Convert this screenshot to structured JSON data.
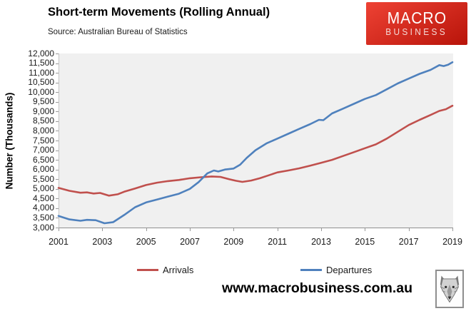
{
  "header": {
    "title": "Short-term Movements (Rolling Annual)",
    "source": "Source: Australian Bureau of Statistics"
  },
  "logo": {
    "line1": "MACRO",
    "line2": "BUSINESS",
    "bg_top": "#ee4234",
    "bg_bottom": "#b8140a",
    "text_color": "#ffffff"
  },
  "footer": {
    "url": "www.macrobusiness.com.au",
    "wolf_icon": "wolf-logo"
  },
  "chart_data": {
    "type": "line",
    "title": "Short-term Movements (Rolling Annual)",
    "subtitle": "Source: Australian Bureau of Statistics",
    "xlabel": "",
    "ylabel": "Number (Thousands)",
    "xlim": [
      2001,
      2019
    ],
    "ylim": [
      3000,
      12000
    ],
    "grid": false,
    "legend_position": "bottom",
    "plot_bg": "#f0f0f0",
    "xtick_values": [
      2001,
      2003,
      2005,
      2007,
      2009,
      2011,
      2013,
      2015,
      2017,
      2019
    ],
    "xtick_labels": [
      "2001",
      "2003",
      "2005",
      "2007",
      "2009",
      "2011",
      "2013",
      "2015",
      "2017",
      "2019"
    ],
    "ytick_values": [
      12000,
      11500,
      11000,
      10500,
      10000,
      9500,
      9000,
      8500,
      8000,
      7500,
      7000,
      6500,
      6000,
      5500,
      5000,
      4500,
      4000,
      3500,
      3000
    ],
    "ytick_labels": [
      "12,000",
      "11,500",
      "11,000",
      "10,500",
      "10,000",
      "9,500",
      "9,000",
      "8,500",
      "8,000",
      "7,500",
      "7,000",
      "6,500",
      "6,000",
      "5,500",
      "5,000",
      "4,500",
      "4,000",
      "3,500",
      "3,000"
    ],
    "series": [
      {
        "name": "Arrivals",
        "color": "#c0504d",
        "points": [
          [
            2001,
            5050
          ],
          [
            2001.5,
            4900
          ],
          [
            2002,
            4800
          ],
          [
            2002.3,
            4820
          ],
          [
            2002.6,
            4760
          ],
          [
            2002.9,
            4790
          ],
          [
            2003.3,
            4650
          ],
          [
            2003.7,
            4720
          ],
          [
            2004,
            4850
          ],
          [
            2004.5,
            5020
          ],
          [
            2005,
            5200
          ],
          [
            2005.5,
            5320
          ],
          [
            2006,
            5400
          ],
          [
            2006.5,
            5460
          ],
          [
            2007,
            5550
          ],
          [
            2007.5,
            5600
          ],
          [
            2008,
            5640
          ],
          [
            2008.4,
            5620
          ],
          [
            2008.8,
            5500
          ],
          [
            2009.1,
            5420
          ],
          [
            2009.4,
            5360
          ],
          [
            2009.8,
            5430
          ],
          [
            2010.2,
            5550
          ],
          [
            2010.6,
            5700
          ],
          [
            2011,
            5850
          ],
          [
            2011.5,
            5950
          ],
          [
            2012,
            6060
          ],
          [
            2012.5,
            6200
          ],
          [
            2013,
            6350
          ],
          [
            2013.5,
            6500
          ],
          [
            2014,
            6700
          ],
          [
            2014.5,
            6900
          ],
          [
            2015,
            7100
          ],
          [
            2015.5,
            7300
          ],
          [
            2016,
            7600
          ],
          [
            2016.5,
            7950
          ],
          [
            2017,
            8300
          ],
          [
            2017.5,
            8570
          ],
          [
            2018,
            8820
          ],
          [
            2018.4,
            9030
          ],
          [
            2018.7,
            9120
          ],
          [
            2019,
            9300
          ]
        ]
      },
      {
        "name": "Departures",
        "color": "#4f81bd",
        "points": [
          [
            2001,
            3600
          ],
          [
            2001.5,
            3420
          ],
          [
            2002,
            3350
          ],
          [
            2002.3,
            3400
          ],
          [
            2002.7,
            3380
          ],
          [
            2003.1,
            3220
          ],
          [
            2003.5,
            3280
          ],
          [
            2004,
            3650
          ],
          [
            2004.5,
            4050
          ],
          [
            2005,
            4300
          ],
          [
            2005.5,
            4450
          ],
          [
            2006,
            4600
          ],
          [
            2006.5,
            4750
          ],
          [
            2007,
            5000
          ],
          [
            2007.4,
            5350
          ],
          [
            2007.8,
            5800
          ],
          [
            2008.1,
            5950
          ],
          [
            2008.3,
            5900
          ],
          [
            2008.6,
            6000
          ],
          [
            2009,
            6050
          ],
          [
            2009.3,
            6250
          ],
          [
            2009.6,
            6600
          ],
          [
            2010,
            7000
          ],
          [
            2010.5,
            7350
          ],
          [
            2011,
            7600
          ],
          [
            2011.5,
            7850
          ],
          [
            2012,
            8100
          ],
          [
            2012.5,
            8350
          ],
          [
            2012.9,
            8570
          ],
          [
            2013.1,
            8550
          ],
          [
            2013.5,
            8900
          ],
          [
            2014,
            9150
          ],
          [
            2014.5,
            9400
          ],
          [
            2015,
            9650
          ],
          [
            2015.5,
            9850
          ],
          [
            2016,
            10150
          ],
          [
            2016.5,
            10450
          ],
          [
            2017,
            10700
          ],
          [
            2017.5,
            10950
          ],
          [
            2018,
            11150
          ],
          [
            2018.4,
            11400
          ],
          [
            2018.6,
            11350
          ],
          [
            2018.8,
            11420
          ],
          [
            2019,
            11550
          ]
        ]
      }
    ]
  }
}
